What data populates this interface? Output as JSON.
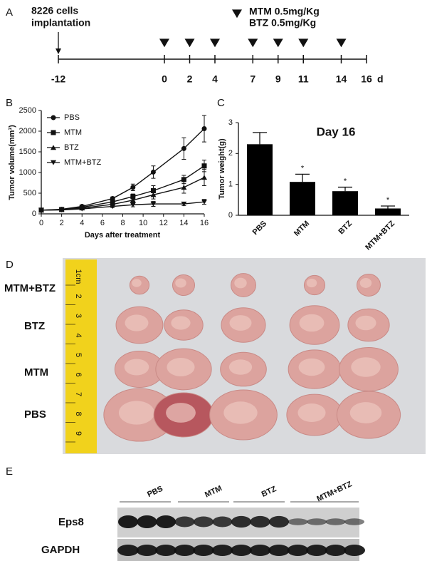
{
  "panel_labels": [
    "A",
    "B",
    "C",
    "D",
    "E"
  ],
  "timeline": {
    "implant_label": [
      "8226 cells",
      "implantation"
    ],
    "ticks": [
      -12,
      0,
      2,
      4,
      7,
      9,
      11,
      14,
      16
    ],
    "unit": "d",
    "treatment_days": [
      0,
      2,
      4,
      7,
      9,
      11,
      14
    ],
    "legend": [
      "MTM 0.5mg/Kg",
      "BTZ  0.5mg/Kg"
    ]
  },
  "chart_data": [
    {
      "type": "line",
      "xlabel": "Days after treatment",
      "ylabel": "Tumor volume(mm³)",
      "x": [
        0,
        2,
        4,
        7,
        9,
        11,
        14,
        16
      ],
      "xlim": [
        0,
        16
      ],
      "xticks": [
        0,
        2,
        4,
        6,
        8,
        10,
        12,
        14,
        16
      ],
      "ylim": [
        0,
        2500
      ],
      "yticks": [
        0,
        500,
        1000,
        1500,
        2000,
        2500
      ],
      "series": [
        {
          "name": "PBS",
          "color": "#111111",
          "marker": "circle",
          "values": [
            90,
            110,
            180,
            370,
            640,
            1010,
            1580,
            2060
          ],
          "errors": [
            0,
            20,
            30,
            40,
            80,
            150,
            260,
            320
          ]
        },
        {
          "name": "MTM",
          "color": "#111111",
          "marker": "square",
          "values": [
            90,
            105,
            160,
            290,
            420,
            560,
            830,
            1160
          ],
          "errors": [
            0,
            15,
            25,
            40,
            60,
            120,
            100,
            140
          ]
        },
        {
          "name": "BTZ",
          "color": "#111111",
          "marker": "triangle-up",
          "values": [
            90,
            100,
            140,
            230,
            330,
            460,
            640,
            880
          ],
          "errors": [
            0,
            15,
            20,
            40,
            60,
            100,
            140,
            200
          ]
        },
        {
          "name": "MTM+BTZ",
          "color": "#111111",
          "marker": "triangle-down",
          "values": [
            90,
            95,
            120,
            180,
            220,
            240,
            240,
            290
          ],
          "errors": [
            0,
            10,
            15,
            30,
            50,
            60,
            40,
            60
          ]
        }
      ]
    },
    {
      "type": "bar",
      "title": "Day 16",
      "ylabel": "Tumor weight(g)",
      "categories": [
        "PBS",
        "MTM",
        "BTZ",
        "MTM+BTZ"
      ],
      "values": [
        2.3,
        1.08,
        0.78,
        0.22
      ],
      "errors": [
        0.38,
        0.25,
        0.13,
        0.08
      ],
      "significance": [
        null,
        "*",
        "*",
        "*"
      ],
      "color": "#000000",
      "ylim": [
        0,
        3
      ],
      "yticks": [
        0,
        1,
        2,
        3
      ]
    }
  ],
  "photo": {
    "row_labels": [
      "MTM+BTZ",
      "BTZ",
      "MTM",
      "PBS"
    ],
    "ruler_labels": [
      "1cm",
      "2",
      "3",
      "4",
      "5",
      "6",
      "7",
      "8",
      "9"
    ]
  },
  "blot": {
    "groups": [
      "PBS",
      "MTM",
      "BTZ",
      "MTM+BTZ"
    ],
    "rows": [
      "Eps8",
      "GAPDH"
    ]
  }
}
